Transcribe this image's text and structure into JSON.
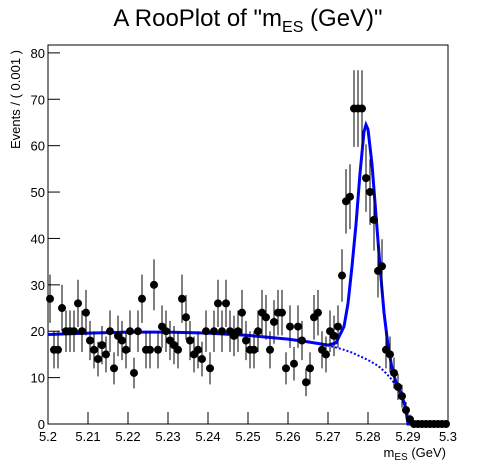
{
  "chart_data": {
    "type": "errorbar",
    "title": [
      "A RooPlot of \"m",
      "ES",
      " (GeV)\""
    ],
    "x_label": [
      "m",
      "ES",
      " (GeV)"
    ],
    "y_label": "Events / ( 0.001 )",
    "xlim": [
      5.2,
      5.3
    ],
    "ylim": [
      0,
      81.7
    ],
    "xticks": [
      5.2,
      5.21,
      5.22,
      5.23,
      5.24,
      5.25,
      5.26,
      5.27,
      5.28,
      5.29,
      5.3
    ],
    "yticks": [
      0,
      10,
      20,
      30,
      40,
      50,
      60,
      70,
      80
    ],
    "points": {
      "color": "#000000",
      "x": [
        5.2005,
        5.2015,
        5.2025,
        5.2035,
        5.2045,
        5.2055,
        5.2065,
        5.2075,
        5.2085,
        5.2095,
        5.2105,
        5.2115,
        5.2125,
        5.2135,
        5.2145,
        5.2155,
        5.2165,
        5.2175,
        5.2185,
        5.2195,
        5.2205,
        5.2215,
        5.2225,
        5.2235,
        5.2245,
        5.2255,
        5.2265,
        5.2275,
        5.2285,
        5.2295,
        5.2305,
        5.2315,
        5.2325,
        5.2335,
        5.2345,
        5.2355,
        5.2365,
        5.2375,
        5.2385,
        5.2395,
        5.2405,
        5.2415,
        5.2425,
        5.2435,
        5.2445,
        5.2455,
        5.2465,
        5.2475,
        5.2485,
        5.2495,
        5.2505,
        5.2515,
        5.2525,
        5.2535,
        5.2545,
        5.2555,
        5.2565,
        5.2575,
        5.2585,
        5.2595,
        5.2605,
        5.2615,
        5.2625,
        5.2635,
        5.2645,
        5.2655,
        5.2665,
        5.2675,
        5.2685,
        5.2695,
        5.2705,
        5.2715,
        5.2725,
        5.2735,
        5.2745,
        5.2755,
        5.2765,
        5.2775,
        5.2785,
        5.2795,
        5.2805,
        5.2815,
        5.2825,
        5.2835,
        5.2845,
        5.2855,
        5.2865,
        5.2875,
        5.2885,
        5.2895,
        5.2905,
        5.2915,
        5.2925,
        5.2935,
        5.2945,
        5.2955,
        5.2965,
        5.2975,
        5.2985,
        5.2995
      ],
      "values": [
        27,
        16,
        16,
        25,
        20,
        20,
        20,
        26,
        20,
        24,
        18,
        16,
        14,
        17,
        15,
        20,
        12,
        19,
        18,
        16,
        20,
        11,
        20,
        27,
        16,
        16,
        30,
        16,
        21,
        20,
        18,
        17,
        16,
        27,
        23,
        18,
        15,
        16,
        14,
        20,
        12,
        20,
        26,
        20,
        26,
        20,
        19,
        20,
        24,
        18,
        16,
        16,
        20,
        24,
        23,
        16,
        22,
        24,
        24,
        12,
        21,
        13,
        21,
        18,
        9,
        12,
        23,
        24,
        16,
        15,
        20,
        19,
        21,
        32,
        48,
        49,
        68,
        68,
        68,
        53,
        50,
        44,
        33,
        34,
        16,
        15,
        11,
        8,
        6,
        3,
        1,
        0,
        0,
        0,
        0,
        0,
        0,
        0,
        0,
        0
      ],
      "errors": [
        5.2,
        4,
        4,
        5,
        4.47,
        4.47,
        4.47,
        5.1,
        4.47,
        4.9,
        4.24,
        4,
        3.74,
        4.12,
        3.87,
        4.47,
        3.46,
        4.36,
        4.24,
        4,
        4.47,
        3.32,
        4.47,
        5.2,
        4,
        4,
        5.48,
        4,
        4.58,
        4.47,
        4.24,
        4.12,
        4,
        5.2,
        4.8,
        4.24,
        3.87,
        4,
        3.74,
        4.47,
        3.46,
        4.47,
        5.1,
        4.47,
        5.1,
        4.47,
        4.36,
        4.47,
        4.9,
        4.24,
        4,
        4,
        4.47,
        4.9,
        4.8,
        4,
        4.69,
        4.9,
        4.9,
        3.46,
        4.58,
        3.61,
        4.58,
        4.24,
        3,
        3.46,
        4.8,
        4.9,
        4,
        3.87,
        4.47,
        4.36,
        4.58,
        5.66,
        6.93,
        7,
        8.25,
        8.25,
        8.25,
        7.28,
        7.07,
        6.63,
        5.74,
        5.83,
        4,
        3.87,
        3.32,
        2.83,
        2.45,
        1.73,
        1,
        0,
        0,
        0,
        0,
        0,
        0,
        0,
        0,
        0
      ]
    },
    "series": [
      {
        "color": "#0000ff",
        "dashed": false,
        "x": [
          5.2,
          5.21,
          5.22,
          5.23,
          5.24,
          5.25,
          5.26,
          5.265,
          5.27,
          5.272,
          5.274,
          5.275,
          5.276,
          5.277,
          5.278,
          5.279,
          5.2795,
          5.28,
          5.281,
          5.282,
          5.283,
          5.284,
          5.285,
          5.286,
          5.287,
          5.288,
          5.289,
          5.2895,
          5.29,
          5.3
        ],
        "values": [
          19.3,
          19.6,
          19.8,
          19.8,
          19.6,
          19.1,
          18.3,
          17.7,
          17.0,
          17.5,
          21,
          26,
          34,
          43,
          54,
          63,
          64.5,
          63.5,
          56,
          45,
          34,
          24,
          17,
          12,
          9,
          7,
          4.7,
          3.0,
          0,
          0
        ]
      },
      {
        "color": "#0000ff",
        "dashed": true,
        "x": [
          5.2,
          5.21,
          5.22,
          5.23,
          5.24,
          5.25,
          5.26,
          5.265,
          5.27,
          5.272,
          5.274,
          5.275,
          5.276,
          5.277,
          5.278,
          5.279,
          5.2795,
          5.28,
          5.281,
          5.282,
          5.283,
          5.284,
          5.285,
          5.286,
          5.287,
          5.288,
          5.289,
          5.2895,
          5.29,
          5.3
        ],
        "values": [
          19.3,
          19.6,
          19.8,
          19.8,
          19.6,
          19.1,
          18.3,
          17.7,
          16.9,
          16.5,
          16.0,
          15.7,
          15.4,
          15.0,
          14.6,
          14.2,
          14.0,
          13.8,
          13.3,
          12.8,
          12.2,
          11.4,
          10.5,
          9.5,
          8.3,
          6.8,
          4.6,
          3.0,
          0,
          0
        ]
      }
    ]
  }
}
